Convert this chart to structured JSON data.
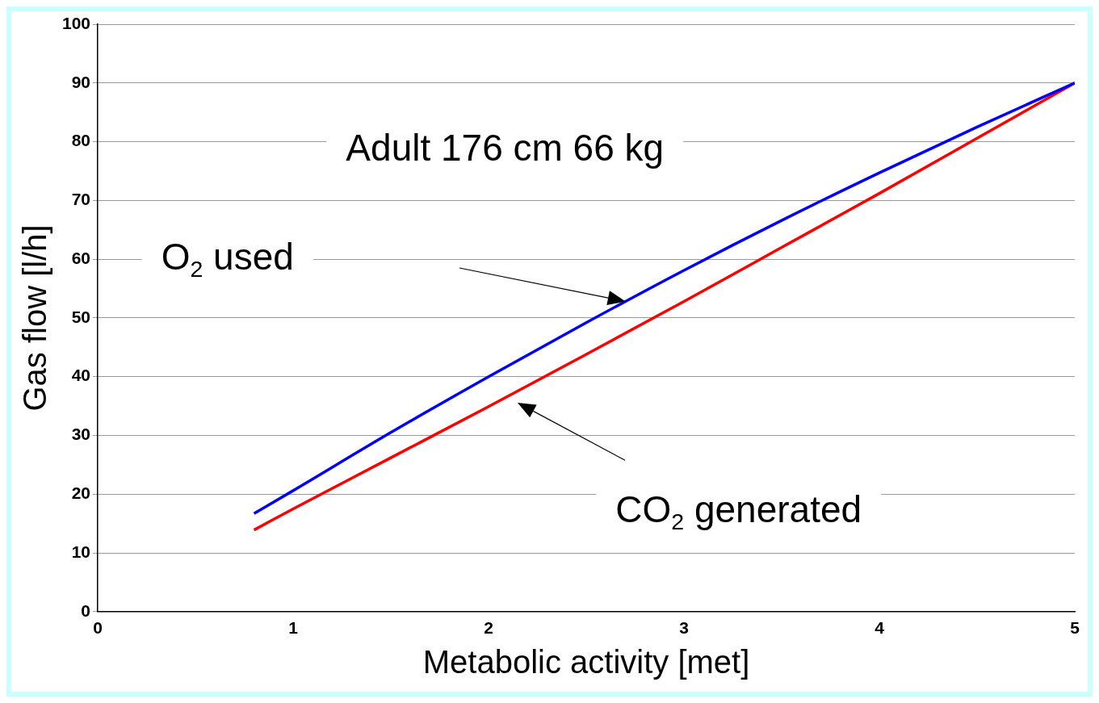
{
  "chart_data": {
    "type": "line",
    "xlabel": "Metabolic activity [met]",
    "ylabel": "Gas flow [l/h]",
    "x": [
      0.8,
      1,
      1.5,
      2,
      2.5,
      3,
      3.5,
      4,
      4.5,
      5
    ],
    "series": [
      {
        "color": "#0000ff",
        "values": [
          16.7,
          20.6,
          30.5,
          40,
          49.2,
          58.1,
          66.6,
          74.7,
          82.5,
          90
        ]
      },
      {
        "color": "#ff0000",
        "values": [
          13.9,
          17.5,
          26.2,
          34.9,
          43.8,
          52.8,
          62,
          71.2,
          80.6,
          90
        ]
      }
    ],
    "xlim": [
      0,
      5
    ],
    "xticks": [
      0,
      1,
      2,
      3,
      4,
      5
    ],
    "ylim": [
      0,
      100
    ],
    "yticks": [
      0,
      10,
      20,
      30,
      40,
      50,
      60,
      70,
      80,
      90,
      100
    ],
    "grid": "y",
    "legend": false,
    "marker": "none",
    "line_style": "solid",
    "annotations": [
      "Adult 176 cm 66 kg",
      "O$_{2}$ used",
      "CO$_{2}$ generated"
    ]
  }
}
